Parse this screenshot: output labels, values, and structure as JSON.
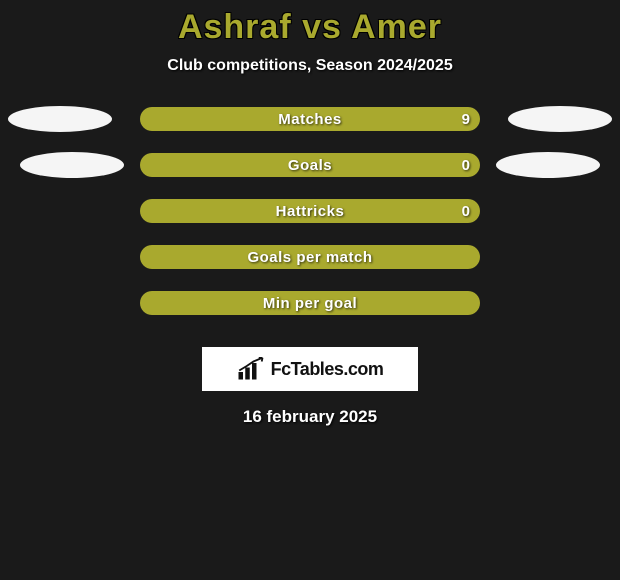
{
  "title": "Ashraf vs Amer",
  "subtitle": "Club competitions, Season 2024/2025",
  "date": "16 february 2025",
  "logo_text": "FcTables.com",
  "colors": {
    "accent": "#a9a92e",
    "oval": "#f5f5f5",
    "background": "#1a1a1a"
  },
  "stats": [
    {
      "label": "Matches",
      "value_right": "9",
      "value_left": "",
      "show_left_oval": true,
      "show_right_oval": true,
      "left_oval_offset": 0,
      "right_oval_offset": 0
    },
    {
      "label": "Goals",
      "value_right": "0",
      "value_left": "",
      "show_left_oval": true,
      "show_right_oval": true,
      "left_oval_offset": 12,
      "right_oval_offset": 12
    },
    {
      "label": "Hattricks",
      "value_right": "0",
      "value_left": "",
      "show_left_oval": false,
      "show_right_oval": false,
      "left_oval_offset": 0,
      "right_oval_offset": 0
    },
    {
      "label": "Goals per match",
      "value_right": "",
      "value_left": "",
      "show_left_oval": false,
      "show_right_oval": false,
      "left_oval_offset": 0,
      "right_oval_offset": 0
    },
    {
      "label": "Min per goal",
      "value_right": "",
      "value_left": "",
      "show_left_oval": false,
      "show_right_oval": false,
      "left_oval_offset": 0,
      "right_oval_offset": 0
    }
  ],
  "typography": {
    "title_fontsize": 34,
    "subtitle_fontsize": 16,
    "stat_label_fontsize": 15,
    "date_fontsize": 17
  }
}
